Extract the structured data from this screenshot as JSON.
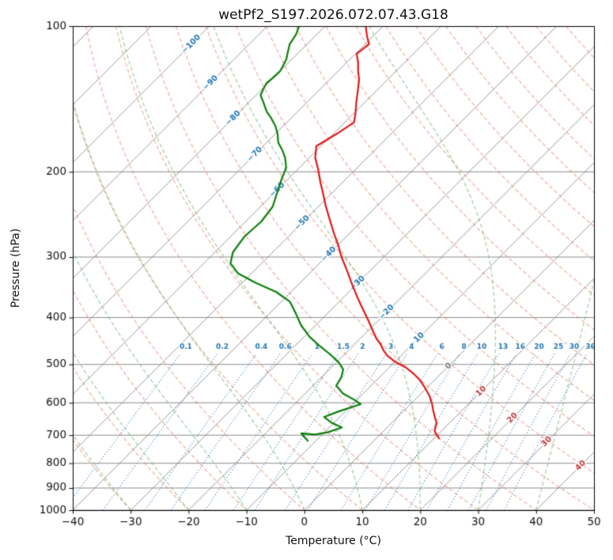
{
  "chart_data": {
    "type": "line",
    "variant": "skew-t-log-p",
    "title": "wetPf2_S197.2026.072.07.43.G18",
    "xlabel": "Temperature (°C)",
    "ylabel": "Pressure (hPa)",
    "xlim": [
      -40,
      50
    ],
    "plim": [
      1000,
      100
    ],
    "x_ticks": [
      -40,
      -30,
      -20,
      -10,
      0,
      10,
      20,
      30,
      40,
      50
    ],
    "y_ticks": [
      100,
      200,
      300,
      400,
      500,
      600,
      700,
      800,
      900,
      1000
    ],
    "isobars_hpa": [
      100,
      200,
      300,
      400,
      500,
      600,
      700,
      800,
      900,
      1000
    ],
    "isotherms_c": [
      -160,
      -150,
      -140,
      -130,
      -120,
      -110,
      -100,
      -90,
      -80,
      -70,
      -60,
      -50,
      -40,
      -30,
      -20,
      -10,
      0,
      10,
      20,
      30,
      40,
      50
    ],
    "isotherm_labels": [
      {
        "t": -100,
        "p": 109
      },
      {
        "t": -90,
        "p": 131
      },
      {
        "t": -80,
        "p": 155
      },
      {
        "t": -70,
        "p": 184
      },
      {
        "t": -60,
        "p": 218
      },
      {
        "t": -50,
        "p": 255
      },
      {
        "t": -40,
        "p": 296
      },
      {
        "t": -30,
        "p": 340
      },
      {
        "t": -20,
        "p": 390
      },
      {
        "t": -10,
        "p": 445
      },
      {
        "t": 0,
        "p": 504
      },
      {
        "t": 10,
        "p": 568
      },
      {
        "t": 20,
        "p": 645
      },
      {
        "t": 30,
        "p": 722
      },
      {
        "t": 40,
        "p": 809
      }
    ],
    "dry_adiabats_theta_c": [
      -30,
      -20,
      -10,
      0,
      10,
      20,
      30,
      40,
      50,
      60,
      70,
      80,
      90,
      100,
      110,
      120,
      130,
      140,
      150,
      160,
      170,
      180,
      190
    ],
    "moist_adiabats_start_c": [
      -40,
      -30,
      -20,
      -10,
      0,
      10,
      20,
      30,
      40,
      50
    ],
    "mixing_ratios_g_kg": [
      0.1,
      0.2,
      0.4,
      0.6,
      1,
      1.5,
      2,
      3,
      4,
      6,
      8,
      10,
      13,
      16,
      20,
      25,
      30,
      36
    ],
    "mixing_ratio_top_hpa": 475,
    "mixing_ratio_label_hpa": 460,
    "series": [
      {
        "name": "temperature",
        "color": "#e01b1b",
        "width": 2.2,
        "points": [
          [
            100,
            -73
          ],
          [
            105,
            -71
          ],
          [
            109,
            -69.3
          ],
          [
            114,
            -69.8
          ],
          [
            119,
            -68
          ],
          [
            124,
            -66.5
          ],
          [
            129,
            -64.9
          ],
          [
            136,
            -63.2
          ],
          [
            144,
            -61.4
          ],
          [
            151,
            -59.8
          ],
          [
            158,
            -58.4
          ],
          [
            167,
            -59.4
          ],
          [
            177,
            -60.8
          ],
          [
            187,
            -59
          ],
          [
            198,
            -56.4
          ],
          [
            210,
            -53.9
          ],
          [
            222,
            -51.4
          ],
          [
            235,
            -48.9
          ],
          [
            251,
            -45.8
          ],
          [
            268,
            -42.7
          ],
          [
            283,
            -40
          ],
          [
            300,
            -37.3
          ],
          [
            320,
            -34
          ],
          [
            342,
            -30.7
          ],
          [
            362,
            -27.8
          ],
          [
            383,
            -24.8
          ],
          [
            405,
            -21.8
          ],
          [
            429,
            -18.8
          ],
          [
            442,
            -17.2
          ],
          [
            455,
            -15.4
          ],
          [
            468,
            -13.9
          ],
          [
            480,
            -12.3
          ],
          [
            494,
            -9.9
          ],
          [
            508,
            -7
          ],
          [
            522,
            -4.8
          ],
          [
            537,
            -2.7
          ],
          [
            558,
            -0.4
          ],
          [
            580,
            1.8
          ],
          [
            602,
            3.6
          ],
          [
            625,
            5.2
          ],
          [
            643,
            6.5
          ],
          [
            661,
            7.8
          ],
          [
            674,
            8.3
          ],
          [
            686,
            8.8
          ],
          [
            696,
            9.6
          ],
          [
            705,
            10.4
          ],
          [
            713,
            11
          ]
        ]
      },
      {
        "name": "dewpoint",
        "color": "#0b800b",
        "width": 2.2,
        "points": [
          [
            100,
            -84.5
          ],
          [
            104,
            -83.6
          ],
          [
            109,
            -83
          ],
          [
            113,
            -82
          ],
          [
            117,
            -81
          ],
          [
            121,
            -80.4
          ],
          [
            124,
            -80
          ],
          [
            128,
            -80.1
          ],
          [
            131,
            -80.3
          ],
          [
            135,
            -79.8
          ],
          [
            139,
            -79.2
          ],
          [
            144,
            -77.4
          ],
          [
            150,
            -75.4
          ],
          [
            155,
            -73.4
          ],
          [
            161,
            -71.3
          ],
          [
            167,
            -69.6
          ],
          [
            174,
            -68
          ],
          [
            180,
            -66.1
          ],
          [
            187,
            -64.2
          ],
          [
            196,
            -62.3
          ],
          [
            208,
            -61
          ],
          [
            222,
            -59.4
          ],
          [
            236,
            -57.9
          ],
          [
            253,
            -57.3
          ],
          [
            272,
            -57.6
          ],
          [
            293,
            -56.9
          ],
          [
            309,
            -55.4
          ],
          [
            324,
            -52.4
          ],
          [
            339,
            -47.7
          ],
          [
            354,
            -42.6
          ],
          [
            371,
            -38.5
          ],
          [
            392,
            -35.5
          ],
          [
            415,
            -32.5
          ],
          [
            438,
            -29.1
          ],
          [
            458,
            -25.7
          ],
          [
            477,
            -22.4
          ],
          [
            495,
            -19.6
          ],
          [
            512,
            -17.6
          ],
          [
            531,
            -16.6
          ],
          [
            553,
            -16
          ],
          [
            574,
            -13.5
          ],
          [
            593,
            -10.2
          ],
          [
            604,
            -8.6
          ],
          [
            624,
            -11
          ],
          [
            642,
            -12.7
          ],
          [
            659,
            -10.5
          ],
          [
            675,
            -7.8
          ],
          [
            690,
            -9.4
          ],
          [
            698,
            -11.2
          ],
          [
            694,
            -13.8
          ],
          [
            721,
            -11.2
          ]
        ]
      }
    ],
    "style": {
      "isobar_color": "rgba(128,128,128,0.9)",
      "isotherm_color": "rgba(128,128,128,0.8)",
      "dry_adiabat_color": "rgba(230,115,95,0.5)",
      "moist_adiabat_color": "rgba(105,175,105,0.55)",
      "mixing_color": "rgba(40,115,185,0.85)",
      "isotherm_label_blue": "#2679b2",
      "isotherm_label_red": "#c03a3a",
      "isotherm_label_gray": "#777777",
      "mixing_label_color": "#2679b2",
      "tick_color": "#111111",
      "spine_color": "#000000"
    }
  }
}
